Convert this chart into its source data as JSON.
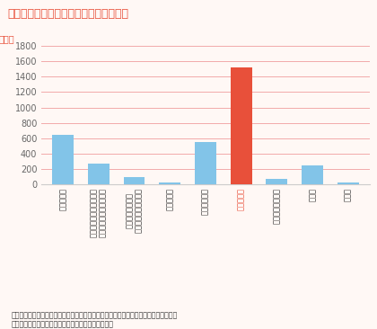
{
  "title": "最も長く避難した避難場所別の避難者数",
  "ylabel": "（人）",
  "categories": [
    "指定避難所",
    "指定避難所以外の避難所\n（公共施設、民間施設）",
    "指定場所かどうか\nわからないが、避難所",
    "福祉避難所",
    "親戚・知人宅",
    "自動車の中",
    "自動車を除く屋外",
    "その他",
    "未回答"
  ],
  "values": [
    640,
    265,
    95,
    25,
    545,
    1520,
    70,
    245,
    20
  ],
  "colors": [
    "#82C4E8",
    "#82C4E8",
    "#82C4E8",
    "#82C4E8",
    "#82C4E8",
    "#E8503A",
    "#82C4E8",
    "#82C4E8",
    "#82C4E8"
  ],
  "highlight_index": 5,
  "highlight_color": "#E8503A",
  "normal_color": "#82C4E8",
  "ylim": [
    0,
    1800
  ],
  "yticks": [
    0,
    200,
    400,
    600,
    800,
    1000,
    1200,
    1400,
    1600,
    1800
  ],
  "bg_color": "#FFF8F5",
  "grid_color": "#F2AAAA",
  "title_color": "#E8503A",
  "highlight_label_color": "#E8503A",
  "footnote_line1": "出典：内閣府防災情報ページ「熊本地震被災者アンケートの分析結果に基づく熊本地震",
  "footnote_line2": "における住民の避難理由と避難期間」を加工して作成"
}
